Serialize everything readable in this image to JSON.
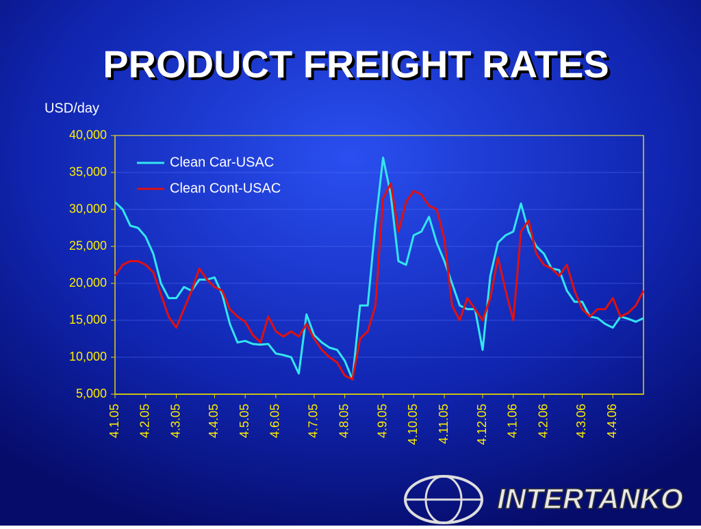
{
  "chart_data": {
    "type": "line",
    "title": "PRODUCT FREIGHT RATES",
    "y_label": "USD/day",
    "logo": "INTERTANKO",
    "categories": [
      "4.1.05",
      null,
      null,
      null,
      "4.2.05",
      null,
      null,
      null,
      "4.3.05",
      null,
      null,
      null,
      null,
      "4.4.05",
      null,
      null,
      null,
      "4.5.05",
      null,
      null,
      null,
      "4.6.05",
      null,
      null,
      null,
      null,
      "4.7.05",
      null,
      null,
      null,
      "4.8.05",
      null,
      null,
      null,
      null,
      "4.9.05",
      null,
      null,
      null,
      "4.10.05",
      null,
      null,
      null,
      "4.11.05",
      null,
      null,
      null,
      null,
      "4.12.05",
      null,
      null,
      null,
      "4.1.06",
      null,
      null,
      null,
      "4.2.06",
      null,
      null,
      null,
      null,
      "4.3.06",
      null,
      null,
      null,
      "4.4.06",
      null,
      null,
      null,
      null
    ],
    "series": [
      {
        "name": "Clean Car-USAC",
        "color": "#33e6f0",
        "values": [
          31000,
          30000,
          27800,
          27500,
          26300,
          24000,
          20000,
          18000,
          18000,
          19500,
          19000,
          20500,
          20500,
          20800,
          18500,
          14500,
          12000,
          12200,
          11800,
          11700,
          11800,
          10500,
          10300,
          10000,
          7800,
          15800,
          13000,
          12000,
          11300,
          11000,
          9500,
          7000,
          17000,
          17000,
          28000,
          37000,
          32000,
          23000,
          22500,
          26500,
          27000,
          29000,
          25500,
          23000,
          20000,
          17000,
          16500,
          16500,
          11000,
          21000,
          25500,
          26500,
          27000,
          30800,
          27000,
          25000,
          24000,
          22000,
          21800,
          19000,
          17500,
          17500,
          15500,
          15300,
          14500,
          14000,
          15500,
          15200,
          14800,
          15300
        ]
      },
      {
        "name": "Clean Cont-USAC",
        "color": "#e01010",
        "values": [
          21000,
          22500,
          23000,
          23000,
          22500,
          21500,
          18500,
          15500,
          14000,
          16500,
          19000,
          22000,
          20500,
          19500,
          19000,
          16500,
          15500,
          14800,
          13000,
          12000,
          15500,
          13500,
          12800,
          13500,
          12800,
          14500,
          12500,
          11000,
          10000,
          9300,
          7500,
          7000,
          12500,
          13500,
          17000,
          31500,
          33500,
          27000,
          31000,
          32500,
          32000,
          30500,
          30000,
          26000,
          17000,
          15000,
          18000,
          16500,
          15000,
          18000,
          23500,
          19000,
          15000,
          27000,
          28500,
          24000,
          22500,
          22000,
          21000,
          22500,
          19000,
          16500,
          15500,
          16500,
          16500,
          18000,
          15500,
          16000,
          17000,
          19000
        ]
      }
    ],
    "ylim": [
      5000,
      40000
    ],
    "yticks": [
      {
        "value": 5000,
        "label": "5,000"
      },
      {
        "value": 10000,
        "label": "10,000"
      },
      {
        "value": 15000,
        "label": "15,000"
      },
      {
        "value": 20000,
        "label": "20,000"
      },
      {
        "value": 25000,
        "label": "25,000"
      },
      {
        "value": 30000,
        "label": "30,000"
      },
      {
        "value": 35000,
        "label": "35,000"
      },
      {
        "value": 40000,
        "label": "40,000"
      }
    ],
    "grid": true,
    "legend": "upper left"
  }
}
